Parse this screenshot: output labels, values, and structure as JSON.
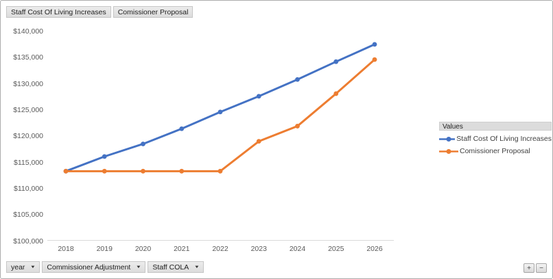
{
  "chart_data": {
    "type": "line",
    "categories": [
      "2018",
      "2019",
      "2020",
      "2021",
      "2022",
      "2023",
      "2024",
      "2025",
      "2026"
    ],
    "series": [
      {
        "name": "Staff Cost Of Living Increases",
        "color": "#4472C4",
        "values": [
          113400,
          116200,
          118600,
          121500,
          124700,
          127700,
          130900,
          134300,
          137600
        ]
      },
      {
        "name": "Comissioner Proposal",
        "color": "#ED7D31",
        "values": [
          113400,
          113400,
          113400,
          113400,
          113400,
          119100,
          122000,
          128200,
          134700
        ]
      }
    ],
    "title": "",
    "xlabel": "",
    "ylabel": "",
    "ylim": [
      100000,
      140000
    ],
    "ytick_step": 5000,
    "ytick_labels": [
      "$100,000",
      "$105,000",
      "$110,000",
      "$115,000",
      "$120,000",
      "$125,000",
      "$130,000",
      "$135,000",
      "$140,000"
    ],
    "grid": false,
    "legend_position": "right",
    "markers": true
  },
  "pivot": {
    "top_field_buttons": [
      "Staff Cost Of Living Increases",
      "Comissioner Proposal"
    ],
    "legend_header": "Values",
    "bottom_field_buttons": [
      "year",
      "Commissioner Adjustment",
      "Staff COLA"
    ],
    "dropdown_arrow": "▼",
    "expand_label": "+",
    "collapse_label": "−"
  },
  "colors": {
    "series_blue": "#4472C4",
    "series_orange": "#ED7D31",
    "axis_text": "#595959",
    "axis_line": "#D9D9D9",
    "field_button_bg": "#E3E3E3"
  }
}
